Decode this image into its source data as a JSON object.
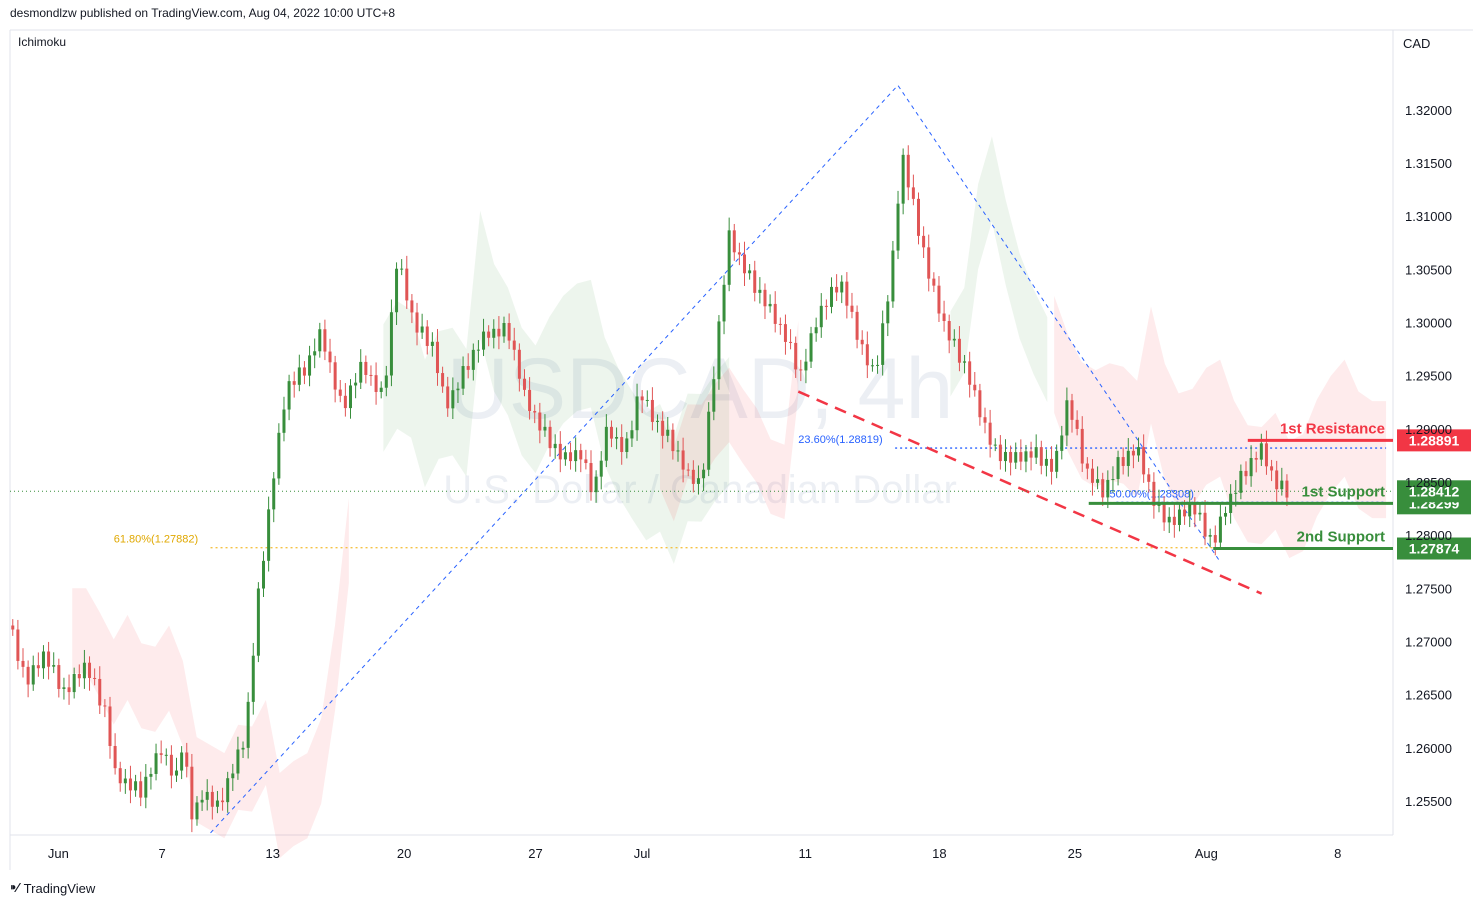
{
  "header": {
    "publisher_text": "desmondlzw published on TradingView.com, Aug 04, 2022 10:00 UTC+8"
  },
  "indicator": {
    "name": "Ichimoku"
  },
  "footer": {
    "brand": "TradingView"
  },
  "watermark": {
    "symbol": "USDCAD, 4h",
    "description": "U.S. Dollar / Canadian Dollar"
  },
  "colors": {
    "up": "#388e3c",
    "down": "#e05555",
    "resistance": "#f23645",
    "support": "#388e3c",
    "fib": "#2962ff",
    "fib618": "#f5c242",
    "trend": "#f23645"
  },
  "chart_data": {
    "type": "candlestick",
    "currency": "CAD",
    "ylim": [
      1.2518,
      1.3275
    ],
    "y_ticks": [
      "1.32000",
      "1.31500",
      "1.31000",
      "1.30500",
      "1.30000",
      "1.29500",
      "1.29000",
      "1.28500",
      "1.28000",
      "1.27500",
      "1.27000",
      "1.26500",
      "1.26000",
      "1.25500"
    ],
    "x_ticks": [
      "Jun",
      "7",
      "13",
      "20",
      "27",
      "Jul",
      "11",
      "18",
      "25",
      "Aug",
      "8"
    ],
    "x_tick_fracs": [
      0.035,
      0.11,
      0.19,
      0.285,
      0.38,
      0.457,
      0.575,
      0.672,
      0.77,
      0.865,
      0.96
    ],
    "ohlc_path": [
      [
        0.0,
        1.2715
      ],
      [
        0.012,
        1.266
      ],
      [
        0.025,
        1.269
      ],
      [
        0.04,
        1.265
      ],
      [
        0.055,
        1.268
      ],
      [
        0.07,
        1.263
      ],
      [
        0.075,
        1.2575
      ],
      [
        0.095,
        1.256
      ],
      [
        0.11,
        1.26
      ],
      [
        0.12,
        1.257
      ],
      [
        0.125,
        1.261
      ],
      [
        0.132,
        1.253
      ],
      [
        0.14,
        1.256
      ],
      [
        0.15,
        1.2545
      ],
      [
        0.16,
        1.2575
      ],
      [
        0.17,
        1.261
      ],
      [
        0.18,
        1.275
      ],
      [
        0.19,
        1.285
      ],
      [
        0.2,
        1.294
      ],
      [
        0.215,
        1.296
      ],
      [
        0.225,
        1.299
      ],
      [
        0.24,
        1.292
      ],
      [
        0.255,
        1.296
      ],
      [
        0.27,
        1.293
      ],
      [
        0.28,
        1.306
      ],
      [
        0.292,
        1.3
      ],
      [
        0.305,
        1.298
      ],
      [
        0.315,
        1.292
      ],
      [
        0.33,
        1.296
      ],
      [
        0.345,
        1.299
      ],
      [
        0.36,
        1.2995
      ],
      [
        0.372,
        1.293
      ],
      [
        0.385,
        1.29
      ],
      [
        0.4,
        1.287
      ],
      [
        0.412,
        1.288
      ],
      [
        0.422,
        1.284
      ],
      [
        0.432,
        1.29
      ],
      [
        0.445,
        1.288
      ],
      [
        0.455,
        1.2935
      ],
      [
        0.465,
        1.291
      ],
      [
        0.478,
        1.289
      ],
      [
        0.49,
        1.2855
      ],
      [
        0.5,
        1.285
      ],
      [
        0.512,
        1.299
      ],
      [
        0.52,
        1.308
      ],
      [
        0.532,
        1.305
      ],
      [
        0.545,
        1.302
      ],
      [
        0.56,
        1.299
      ],
      [
        0.572,
        1.295
      ],
      [
        0.585,
        1.301
      ],
      [
        0.6,
        1.304
      ],
      [
        0.612,
        1.299
      ],
      [
        0.625,
        1.295
      ],
      [
        0.637,
        1.304
      ],
      [
        0.645,
        1.316
      ],
      [
        0.655,
        1.31
      ],
      [
        0.665,
        1.304
      ],
      [
        0.675,
        1.3
      ],
      [
        0.69,
        1.296
      ],
      [
        0.7,
        1.292
      ],
      [
        0.712,
        1.288
      ],
      [
        0.725,
        1.287
      ],
      [
        0.74,
        1.288
      ],
      [
        0.755,
        1.286
      ],
      [
        0.765,
        1.293
      ],
      [
        0.778,
        1.286
      ],
      [
        0.79,
        1.284
      ],
      [
        0.802,
        1.287
      ],
      [
        0.815,
        1.288
      ],
      [
        0.828,
        1.283
      ],
      [
        0.84,
        1.281
      ],
      [
        0.855,
        1.283
      ],
      [
        0.87,
        1.279
      ],
      [
        0.88,
        1.283
      ],
      [
        0.892,
        1.286
      ],
      [
        0.905,
        1.288
      ],
      [
        0.915,
        1.285
      ],
      [
        0.925,
        1.2841
      ]
    ],
    "fib_levels": [
      {
        "label": "23.60%(1.28819)",
        "value": 1.28819
      },
      {
        "label": "50.00%(1.28308)",
        "value": 1.28308
      },
      {
        "label": "61.80%(1.27882)",
        "value": 1.27882
      }
    ],
    "levels": [
      {
        "name": "1st Resistance",
        "value": "1.28891",
        "price": 1.28891,
        "type": "resistance"
      },
      {
        "name": "1st Support",
        "value": "1.28299",
        "price": 1.28299,
        "type": "support"
      },
      {
        "name": "2nd Support",
        "value": "1.27874",
        "price": 1.27874,
        "type": "support"
      }
    ],
    "current_price": {
      "value": "1.28412",
      "price": 1.28412
    },
    "swing_points": {
      "low": [
        0.145,
        1.252
      ],
      "high": [
        0.642,
        1.3223
      ],
      "end": [
        0.875,
        1.2775
      ]
    },
    "trendline": {
      "start": [
        0.57,
        1.2935
      ],
      "end": [
        0.905,
        1.2745
      ]
    }
  }
}
